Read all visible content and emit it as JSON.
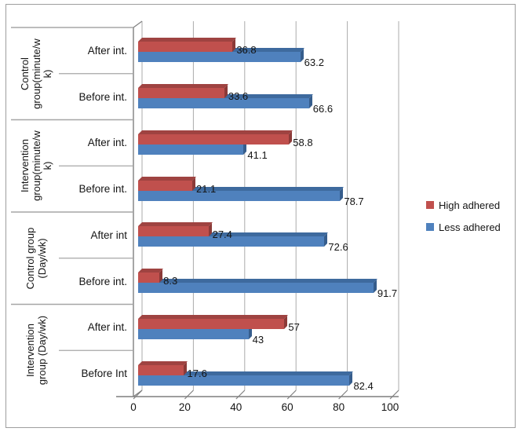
{
  "chart_data": {
    "type": "bar",
    "orientation": "horizontal",
    "title": "",
    "xlabel": "",
    "ylabel": "",
    "x_axis": {
      "ticks": [
        0,
        20,
        40,
        60,
        80,
        100
      ],
      "range": [
        0,
        100
      ],
      "grid": true
    },
    "legend_position": "right",
    "series": [
      {
        "name": "High adhered",
        "color": "#C0504D"
      },
      {
        "name": "Less adhered",
        "color": "#4F81BD"
      }
    ],
    "groups": [
      {
        "label": "Control group(minute/wk)",
        "rows": [
          {
            "label": "After int.",
            "high": 36.8,
            "less": 63.2
          },
          {
            "label": "Before int.",
            "high": 33.6,
            "less": 66.6
          }
        ]
      },
      {
        "label": "Intervention group(minute/wk)",
        "rows": [
          {
            "label": "After int.",
            "high": 58.8,
            "less": 41.1
          },
          {
            "label": "Before int.",
            "high": 21.1,
            "less": 78.7
          }
        ]
      },
      {
        "label": "Control group (Day/wk)",
        "rows": [
          {
            "label": "After int",
            "high": 27.4,
            "less": 72.6
          },
          {
            "label": "Before int.",
            "high": 8.3,
            "less": 91.7
          }
        ]
      },
      {
        "label": "Intervention group (Day/wk)",
        "rows": [
          {
            "label": "After int.",
            "high": 57,
            "less": 43
          },
          {
            "label": "Before Int",
            "high": 17.6,
            "less": 82.4
          }
        ]
      }
    ],
    "colors": {
      "high": "#C0504D",
      "high_top": "#9F4341",
      "high_side": "#8B3A38",
      "less": "#4F81BD",
      "less_top": "#3E6A9E",
      "less_side": "#365D8C",
      "gridline": "#ABABAB",
      "axis": "#7F7F7F",
      "separator": "#A6A6A6",
      "figure_border": "#9E9E9E",
      "text": "#141414"
    }
  }
}
